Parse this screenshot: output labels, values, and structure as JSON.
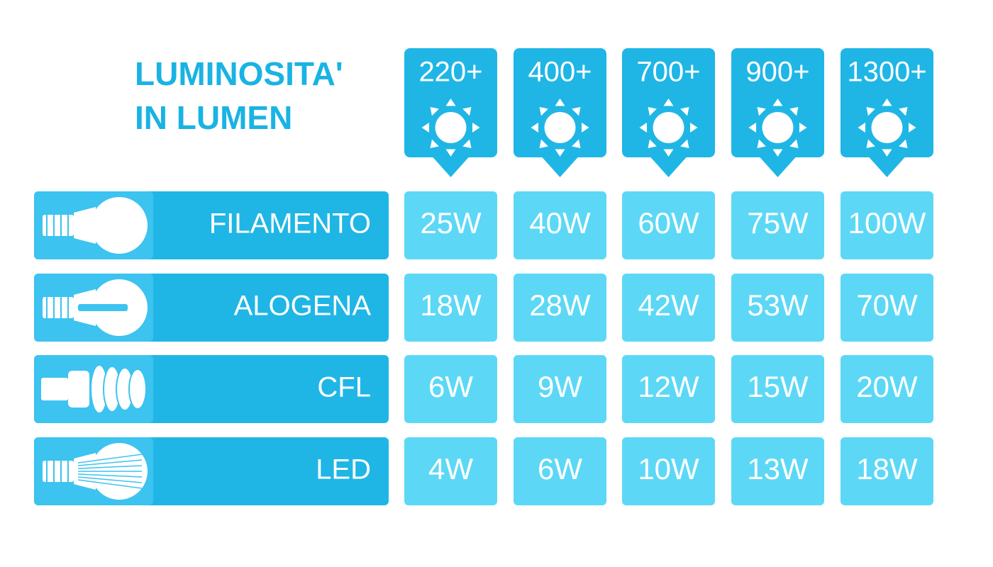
{
  "title": [
    "LUMINOSITA'",
    "IN LUMEN"
  ],
  "columns": [
    "220+",
    "400+",
    "700+",
    "900+",
    "1300+"
  ],
  "rows": [
    {
      "label": "FILAMENTO",
      "cells": [
        "25W",
        "40W",
        "60W",
        "75W",
        "100W"
      ]
    },
    {
      "label": "ALOGENA",
      "cells": [
        "18W",
        "28W",
        "42W",
        "53W",
        "70W"
      ]
    },
    {
      "label": "CFL",
      "cells": [
        "6W",
        "9W",
        "12W",
        "15W",
        "20W"
      ]
    },
    {
      "label": "LED",
      "cells": [
        "4W",
        "6W",
        "10W",
        "13W",
        "18W"
      ]
    }
  ]
}
